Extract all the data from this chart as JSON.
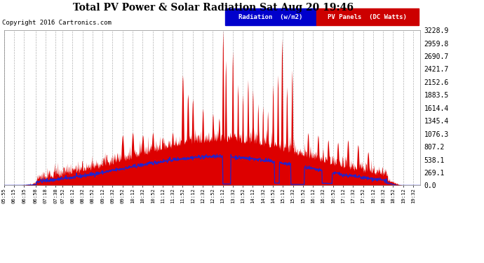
{
  "title": "Total PV Power & Solar Radiation Sat Aug 20 19:46",
  "copyright": "Copyright 2016 Cartronics.com",
  "background_color": "#ffffff",
  "plot_bg_color": "#ffffff",
  "grid_color": "#aaaaaa",
  "text_color": "#000000",
  "title_color": "#000000",
  "y_ticks": [
    0.0,
    269.1,
    538.1,
    807.2,
    1076.3,
    1345.4,
    1614.4,
    1883.5,
    2152.6,
    2421.7,
    2690.7,
    2959.8,
    3228.9
  ],
  "y_max": 3228.9,
  "pv_fill_color": "#dd0000",
  "radiation_line_color": "#2222cc",
  "legend_radiation_color": "#0000cc",
  "legend_pv_color": "#cc0000",
  "legend_radiation_label": "Radiation  (w/m2)",
  "legend_pv_label": "PV Panels  (DC Watts)",
  "x_labels": [
    "05:55",
    "06:15",
    "06:35",
    "06:58",
    "07:18",
    "07:38",
    "07:52",
    "08:12",
    "08:32",
    "08:52",
    "09:12",
    "09:32",
    "09:52",
    "10:12",
    "10:32",
    "10:52",
    "11:12",
    "11:32",
    "11:52",
    "12:12",
    "12:32",
    "12:52",
    "13:12",
    "13:32",
    "13:52",
    "14:12",
    "14:32",
    "14:52",
    "15:12",
    "15:32",
    "15:52",
    "16:12",
    "16:32",
    "16:52",
    "17:12",
    "17:32",
    "17:52",
    "18:12",
    "18:32",
    "18:52",
    "19:12",
    "19:32"
  ]
}
